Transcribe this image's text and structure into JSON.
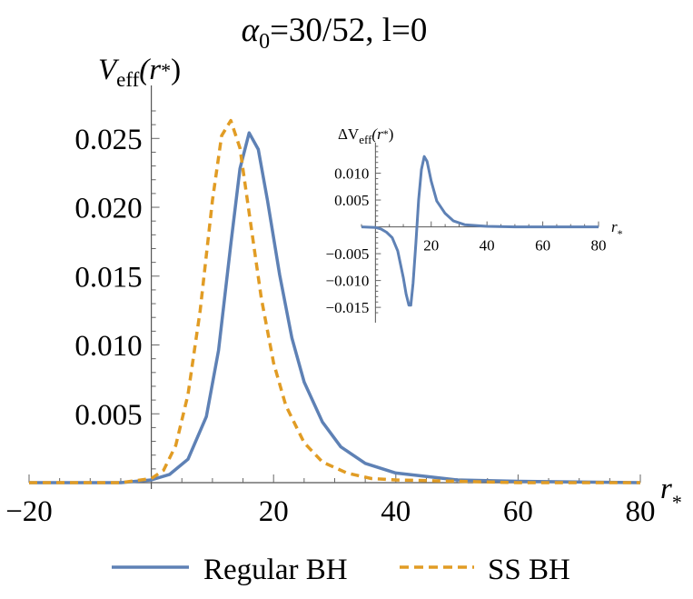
{
  "chart_data": [
    {
      "type": "line",
      "title": {
        "alpha": "α",
        "sub": "0",
        "rest": "=30/52, l=0"
      },
      "ylabel": {
        "main": "V",
        "sub": "eff",
        "arg": "(r",
        "star": "*",
        "close": ")"
      },
      "xlabel": {
        "main": "r",
        "star": "*"
      },
      "xlim": [
        -20,
        80
      ],
      "ylim": [
        0,
        0.027
      ],
      "x_ticks": [
        -20,
        20,
        40,
        60,
        80
      ],
      "x_tick_labels": [
        "−20",
        "20",
        "40",
        "60",
        "80"
      ],
      "y_ticks": [
        0.005,
        0.01,
        0.015,
        0.02,
        0.025
      ],
      "y_tick_labels": [
        "0.005",
        "0.010",
        "0.015",
        "0.020",
        "0.025"
      ],
      "legend_position": "bottom",
      "grid": false,
      "series": [
        {
          "name": "Regular BH",
          "color": "#5e81b5",
          "style": "solid",
          "x": [
            -20,
            -5,
            0,
            3,
            6,
            9,
            11,
            13,
            14.5,
            16,
            17.5,
            19,
            21,
            23,
            25,
            28,
            31,
            35,
            40,
            50,
            60,
            80
          ],
          "y": [
            0.0,
            0.0,
            0.0002,
            0.0006,
            0.0017,
            0.0048,
            0.0096,
            0.0173,
            0.0228,
            0.0254,
            0.0242,
            0.0205,
            0.0151,
            0.0105,
            0.0073,
            0.0044,
            0.0026,
            0.0014,
            0.0007,
            0.0002,
            0.0001,
            0.0
          ]
        },
        {
          "name": "SS BH",
          "color": "#e19c24",
          "style": "dashed",
          "x": [
            -20,
            -5,
            0,
            2,
            4,
            6,
            8,
            10,
            11.5,
            13,
            14.5,
            16,
            18,
            20,
            22,
            25,
            28,
            32,
            36,
            40,
            50,
            60,
            80
          ],
          "y": [
            0.0,
            0.0,
            0.0003,
            0.0009,
            0.0027,
            0.0064,
            0.0125,
            0.0205,
            0.0252,
            0.0263,
            0.0243,
            0.0196,
            0.0134,
            0.0087,
            0.0056,
            0.0029,
            0.0015,
            0.0007,
            0.0003,
            0.0002,
            0.0001,
            0.0,
            0.0
          ]
        }
      ]
    },
    {
      "type": "line",
      "ylabel": {
        "main": "ΔV",
        "sub": "eff",
        "arg": "(r",
        "star": "*",
        "close": ")"
      },
      "xlabel": {
        "main": "r",
        "star": "*"
      },
      "xlim": [
        -5,
        80
      ],
      "ylim": [
        -0.0165,
        0.015
      ],
      "x_ticks": [
        20,
        40,
        60,
        80
      ],
      "x_tick_labels": [
        "20",
        "40",
        "60",
        "80"
      ],
      "y_ticks": [
        -0.015,
        -0.01,
        -0.005,
        0.005,
        0.01
      ],
      "y_tick_labels": [
        "−0.015",
        "−0.010",
        "−0.005",
        "0.005",
        "0.010"
      ],
      "grid": false,
      "series": [
        {
          "color": "#5e81b5",
          "style": "solid",
          "x": [
            -5,
            0,
            2,
            4,
            6,
            8,
            10,
            11,
            12,
            12.7,
            13.5,
            14.5,
            15.5,
            16.5,
            17.5,
            18.5,
            20,
            22,
            25,
            28,
            32,
            40,
            50,
            80
          ],
          "y": [
            0.0,
            -0.0001,
            -0.0004,
            -0.001,
            -0.002,
            -0.0045,
            -0.0095,
            -0.0125,
            -0.0146,
            -0.0146,
            -0.0105,
            -0.003,
            0.005,
            0.0107,
            0.0131,
            0.0122,
            0.0085,
            0.0048,
            0.0025,
            0.0011,
            0.0004,
            0.0001,
            0.0,
            0.0
          ]
        }
      ]
    }
  ],
  "legend": [
    {
      "label": "Regular BH",
      "color": "#5e81b5",
      "style": "solid"
    },
    {
      "label": "SS BH",
      "color": "#e19c24",
      "style": "dashed"
    }
  ]
}
